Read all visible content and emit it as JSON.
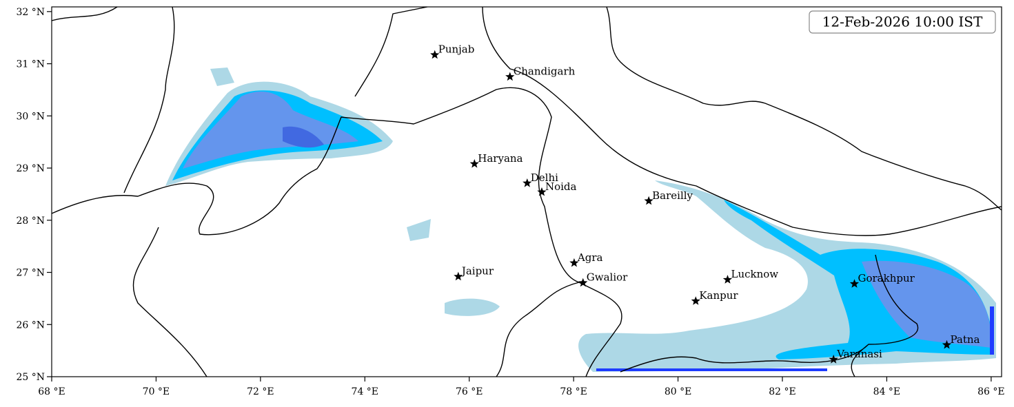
{
  "chart_data": {
    "type": "map",
    "timestamp": "12-Feb-2026 10:00 IST",
    "xlim": [
      68,
      86.2
    ],
    "ylim": [
      25,
      32.09
    ],
    "xticks": [
      {
        "value": 68,
        "label": "68 °E"
      },
      {
        "value": 70,
        "label": "70 °E"
      },
      {
        "value": 72,
        "label": "72 °E"
      },
      {
        "value": 74,
        "label": "74 °E"
      },
      {
        "value": 76,
        "label": "76 °E"
      },
      {
        "value": 78,
        "label": "78 °E"
      },
      {
        "value": 80,
        "label": "80 °E"
      },
      {
        "value": 82,
        "label": "82 °E"
      },
      {
        "value": 84,
        "label": "84 °E"
      },
      {
        "value": 86,
        "label": "86 °E"
      }
    ],
    "yticks": [
      {
        "value": 25,
        "label": "25 °N"
      },
      {
        "value": 26,
        "label": "26 °N"
      },
      {
        "value": 27,
        "label": "27 °N"
      },
      {
        "value": 28,
        "label": "28 °N"
      },
      {
        "value": 29,
        "label": "29 °N"
      },
      {
        "value": 30,
        "label": "30 °N"
      },
      {
        "value": 31,
        "label": "31 °N"
      },
      {
        "value": 32,
        "label": "32 °N"
      }
    ],
    "marker_color": "#000000",
    "cities": {
      "names": [
        "Punjab",
        "Chandigarh",
        "Haryana",
        "Delhi",
        "Noida",
        "Bareilly",
        "Agra",
        "Jaipur",
        "Gwalior",
        "Lucknow",
        "Kanpur",
        "Gorakhpur",
        "Varanasi",
        "Patna"
      ],
      "lon": [
        75.34,
        76.78,
        76.1,
        77.11,
        77.39,
        79.44,
        78.01,
        75.79,
        78.18,
        80.95,
        80.34,
        83.38,
        82.98,
        85.15
      ],
      "lat": [
        31.17,
        30.75,
        29.08,
        28.71,
        28.54,
        28.37,
        27.18,
        26.92,
        26.8,
        26.86,
        26.45,
        26.78,
        25.33,
        25.61
      ]
    }
  }
}
